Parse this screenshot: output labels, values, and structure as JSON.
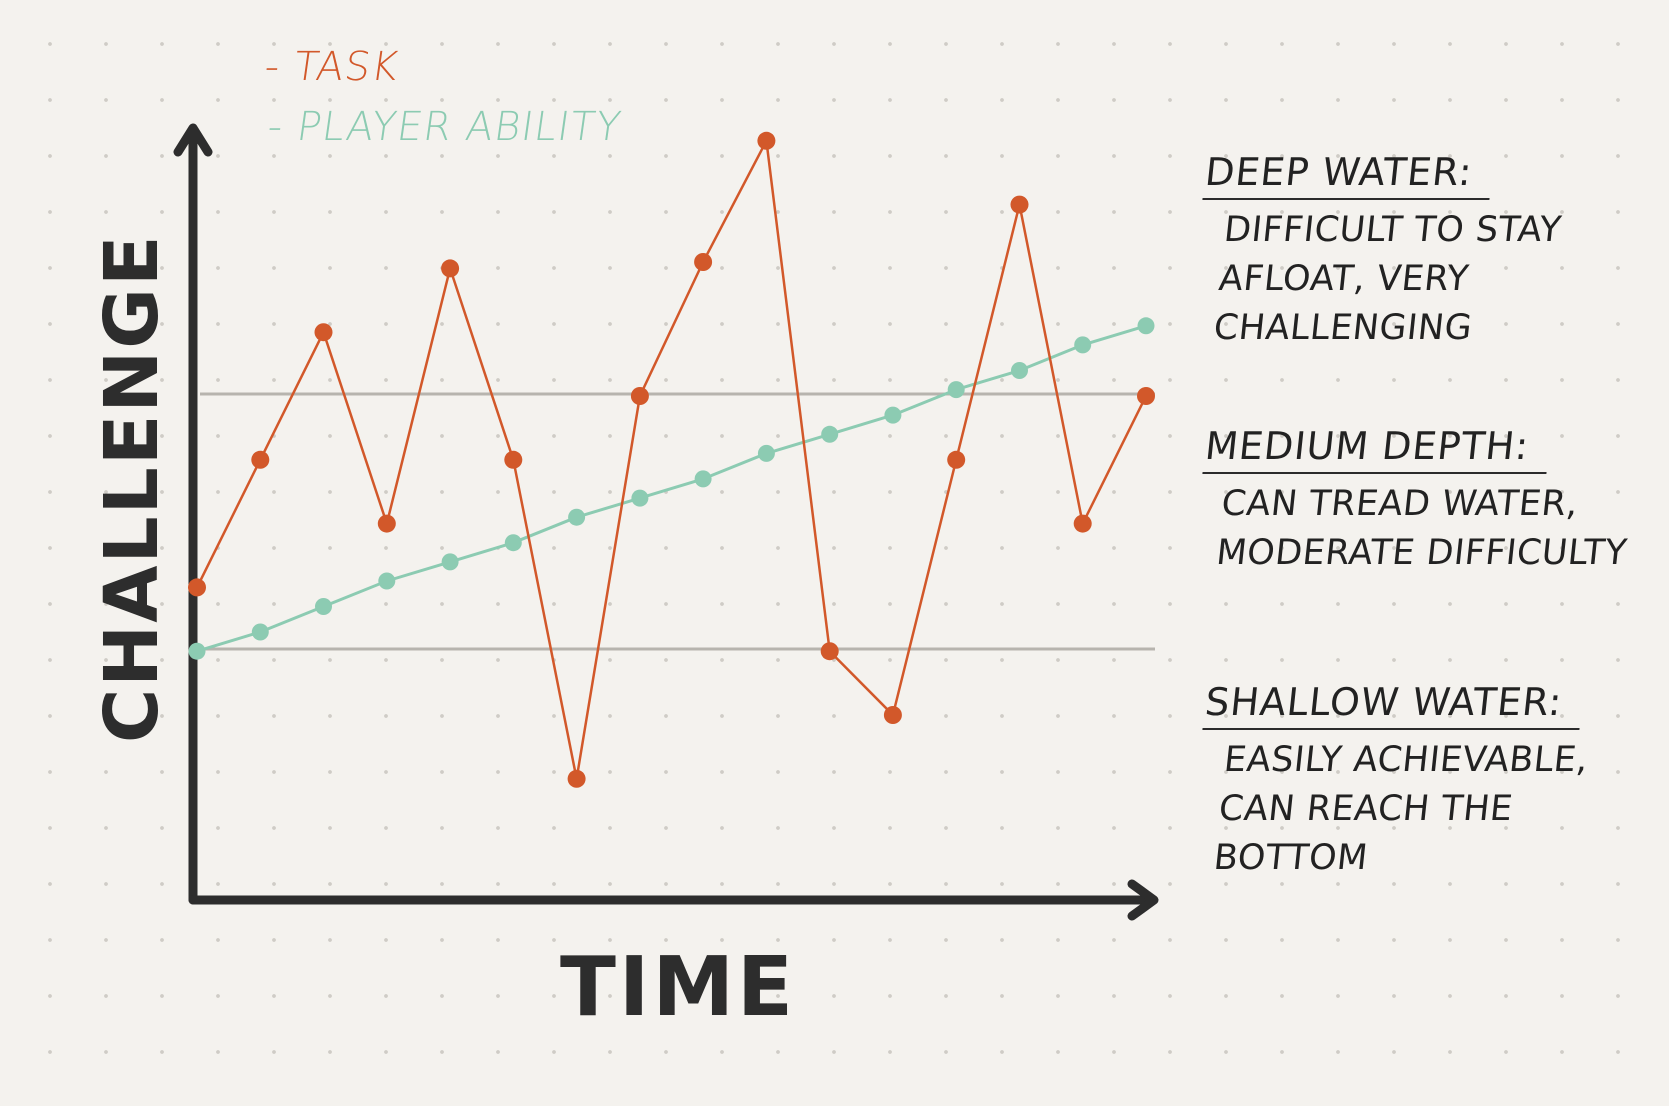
{
  "chart_data": {
    "type": "line",
    "xlabel": "TIME",
    "ylabel": "CHALLENGE",
    "x": [
      1,
      2,
      3,
      4,
      5,
      6,
      7,
      8,
      9,
      10,
      11,
      12,
      13,
      14,
      15,
      16
    ],
    "ylim": [
      0,
      10
    ],
    "series": [
      {
        "name": "TASK",
        "color": "#d2582a",
        "values": [
          4.9,
          6.9,
          8.9,
          5.9,
          9.9,
          6.9,
          1.9,
          7.9,
          10.0,
          11.9,
          3.9,
          2.9,
          6.9,
          10.9,
          5.9,
          7.9
        ]
      },
      {
        "name": "PLAYER ABILITY",
        "color": "#8ccbb2",
        "values": [
          3.9,
          4.2,
          4.6,
          5.0,
          5.3,
          5.6,
          6.0,
          6.3,
          6.6,
          7.0,
          7.3,
          7.6,
          8.0,
          8.3,
          8.7,
          9.0
        ]
      }
    ],
    "zones": [
      {
        "title": "DEEP WATER:",
        "description": "DIFFICULT TO STAY AFLOAT, VERY CHALLENGING"
      },
      {
        "title": "MEDIUM DEPTH:",
        "description": "CAN TREAD WATER, MODERATE DIFFICULTY"
      },
      {
        "title": "SHALLOW WATER:",
        "description": "EASILY ACHIEVABLE, CAN REACH THE BOTTOM"
      }
    ]
  },
  "legend": {
    "task": "- TASK",
    "player": "- PLAYER ABILITY"
  },
  "colors": {
    "axis": "#2d2d2d",
    "threshold": "#b7b4ae",
    "task": "#d2582a",
    "player": "#8ccbb2"
  }
}
